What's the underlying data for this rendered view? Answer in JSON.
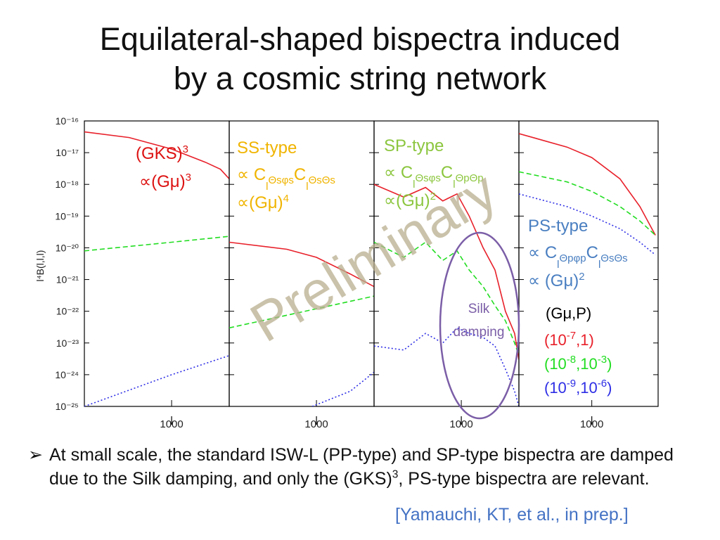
{
  "slide": {
    "title_line1": "Equilateral-shaped bispectra induced",
    "title_line2": "by a cosmic string network",
    "watermark": "Preliminary",
    "bullet_marker": "➢",
    "bullet_text_1": "At small scale, the standard ISW-L (PP-type) and SP-type bispectra are damped due to the Silk damping, and only the (GKS)",
    "bullet_sup": "3",
    "bullet_text_2": ", PS-type bispectra are relevant.",
    "reference": "[Yamauchi, KT, et al., in prep.]"
  },
  "colors": {
    "red": "#e8202a",
    "green": "#22dd22",
    "blue": "#2e2ee6",
    "gks_label": "#dd1111",
    "ss_label": "#f0b400",
    "sp_label": "#8cc63f",
    "ps_label": "#4a7fc1",
    "silk": "#7b5ea7",
    "watermark": "#b8ad8e"
  },
  "chart_data": {
    "type": "line",
    "xlabel": "",
    "ylabel": "l⁴B(l,l,l)",
    "y_scale": "log",
    "ylim": [
      1e-25,
      1e-16
    ],
    "y_tick_labels": [
      "10⁻¹⁶",
      "10⁻¹⁷",
      "10⁻¹⁸",
      "10⁻¹⁹",
      "10⁻²⁰",
      "10⁻²¹",
      "10⁻²²",
      "10⁻²³",
      "10⁻²⁴",
      "10⁻²⁵"
    ],
    "x_tick_label": "1000",
    "panels": [
      {
        "label_lines": [
          {
            "text": "(GKS)",
            "sup": "3"
          },
          {
            "text": "∝(Gμ)",
            "sup": "3"
          }
        ],
        "series": [
          {
            "color": "red",
            "dash": "solid",
            "points": [
              [
                350,
                4.5e-17
              ],
              [
                600,
                3e-17
              ],
              [
                1000,
                1.3e-17
              ],
              [
                1500,
                5e-18
              ],
              [
                1800,
                3e-18
              ],
              [
                2000,
                1.5e-18
              ]
            ]
          },
          {
            "color": "green",
            "dash": "dashed",
            "points": [
              [
                350,
                8e-21
              ],
              [
                1000,
                1.5e-20
              ],
              [
                2000,
                2.3e-20
              ]
            ]
          },
          {
            "color": "blue",
            "dash": "dotted",
            "points": [
              [
                350,
                1e-25
              ],
              [
                1000,
                1e-24
              ],
              [
                2000,
                4e-24
              ]
            ]
          }
        ]
      },
      {
        "label_lines": [
          {
            "text": "SS-type"
          },
          {
            "text": "∝ C",
            "sub": "l",
            "sup": "ΘsφsC"
          },
          {
            "text": "∝(Gμ)",
            "sup": "4"
          }
        ],
        "label_line2_parts": [
          "∝ C",
          "l",
          "Θsφs",
          "C",
          "l",
          "ΘsΘs"
        ],
        "series": [
          {
            "color": "red",
            "dash": "solid",
            "points": [
              [
                350,
                1.5e-20
              ],
              [
                700,
                9e-21
              ],
              [
                1000,
                5e-21
              ],
              [
                1500,
                1.5e-21
              ],
              [
                2000,
                6e-22
              ]
            ]
          },
          {
            "color": "green",
            "dash": "dashed",
            "points": [
              [
                350,
                3e-23
              ],
              [
                1000,
                1.2e-22
              ],
              [
                2000,
                3e-22
              ]
            ]
          },
          {
            "color": "blue",
            "dash": "dotted",
            "points": [
              [
                950,
                1e-25
              ],
              [
                1500,
                3e-25
              ],
              [
                2000,
                1.2e-24
              ]
            ]
          }
        ]
      },
      {
        "label_lines": [
          {
            "text": "SP-type"
          },
          {
            "text": "∝ C"
          },
          {
            "text": "∝(Gμ)",
            "sup": "2"
          }
        ],
        "label_line2_parts": [
          "∝ C",
          "l",
          "Θsφs",
          "C",
          "l",
          "ΘpΘp"
        ],
        "series": [
          {
            "color": "red",
            "dash": "solid",
            "points": [
              [
                350,
                1e-18
              ],
              [
                500,
                4e-19
              ],
              [
                650,
                8e-19
              ],
              [
                800,
                3e-19
              ],
              [
                950,
                5e-19
              ],
              [
                1100,
                1e-19
              ],
              [
                1300,
                1e-20
              ],
              [
                1500,
                2e-21
              ],
              [
                1700,
                1e-22
              ],
              [
                1900,
                2e-23
              ],
              [
                2000,
                3e-24
              ]
            ]
          },
          {
            "color": "green",
            "dash": "dashed",
            "points": [
              [
                350,
                1.5e-20
              ],
              [
                500,
                5e-21
              ],
              [
                650,
                1.5e-20
              ],
              [
                800,
                4e-21
              ],
              [
                950,
                8e-21
              ],
              [
                1100,
                2e-21
              ],
              [
                1300,
                6e-22
              ],
              [
                1500,
                1.5e-22
              ],
              [
                1700,
                5e-23
              ],
              [
                1900,
                1e-23
              ],
              [
                2000,
                4e-24
              ]
            ]
          },
          {
            "color": "blue",
            "dash": "dotted",
            "points": [
              [
                350,
                8e-24
              ],
              [
                500,
                6e-24
              ],
              [
                650,
                2e-23
              ],
              [
                800,
                1e-23
              ],
              [
                950,
                3e-23
              ],
              [
                1100,
                2e-23
              ],
              [
                1300,
                1.5e-23
              ],
              [
                1500,
                8e-24
              ],
              [
                1700,
                1.5e-24
              ],
              [
                1900,
                3e-25
              ],
              [
                2000,
                1e-25
              ]
            ]
          }
        ]
      },
      {
        "label_lines": [
          {
            "text": "PS-type"
          },
          {
            "text": "∝ C"
          },
          {
            "text": "∝ (Gμ)",
            "sup": "2"
          }
        ],
        "label_line2_parts": [
          "∝ C",
          "l",
          "Θpφp",
          "C",
          "l",
          "ΘsΘs"
        ],
        "series": [
          {
            "color": "red",
            "dash": "solid",
            "points": [
              [
                350,
                4e-17
              ],
              [
                700,
                1.5e-17
              ],
              [
                1000,
                7e-18
              ],
              [
                1500,
                1.5e-18
              ],
              [
                2000,
                2e-19
              ],
              [
                2500,
                2.5e-20
              ]
            ]
          },
          {
            "color": "green",
            "dash": "dashed",
            "points": [
              [
                350,
                2.5e-18
              ],
              [
                700,
                1.2e-18
              ],
              [
                1000,
                6e-19
              ],
              [
                1500,
                2e-19
              ],
              [
                2000,
                7e-20
              ],
              [
                2500,
                2.5e-20
              ]
            ]
          },
          {
            "color": "blue",
            "dash": "dotted",
            "points": [
              [
                350,
                5e-19
              ],
              [
                700,
                2e-19
              ],
              [
                1000,
                1e-19
              ],
              [
                1500,
                4e-20
              ],
              [
                2000,
                1.5e-20
              ],
              [
                2500,
                6e-21
              ]
            ]
          }
        ]
      }
    ],
    "annotations": {
      "silk_line1": "Silk",
      "silk_line2": "damping"
    },
    "legend": {
      "header": "(Gμ,P)",
      "entries": [
        {
          "color": "red",
          "base": "(10",
          "exp1": "-7",
          "mid": ",1)",
          "exp2": ""
        },
        {
          "color": "green",
          "base": "(10",
          "exp1": "-8",
          "mid": ",10",
          "exp2": "-3",
          "end": ")"
        },
        {
          "color": "blue",
          "base": "(10",
          "exp1": "-9",
          "mid": ",10",
          "exp2": "-6",
          "end": ")"
        }
      ]
    }
  }
}
